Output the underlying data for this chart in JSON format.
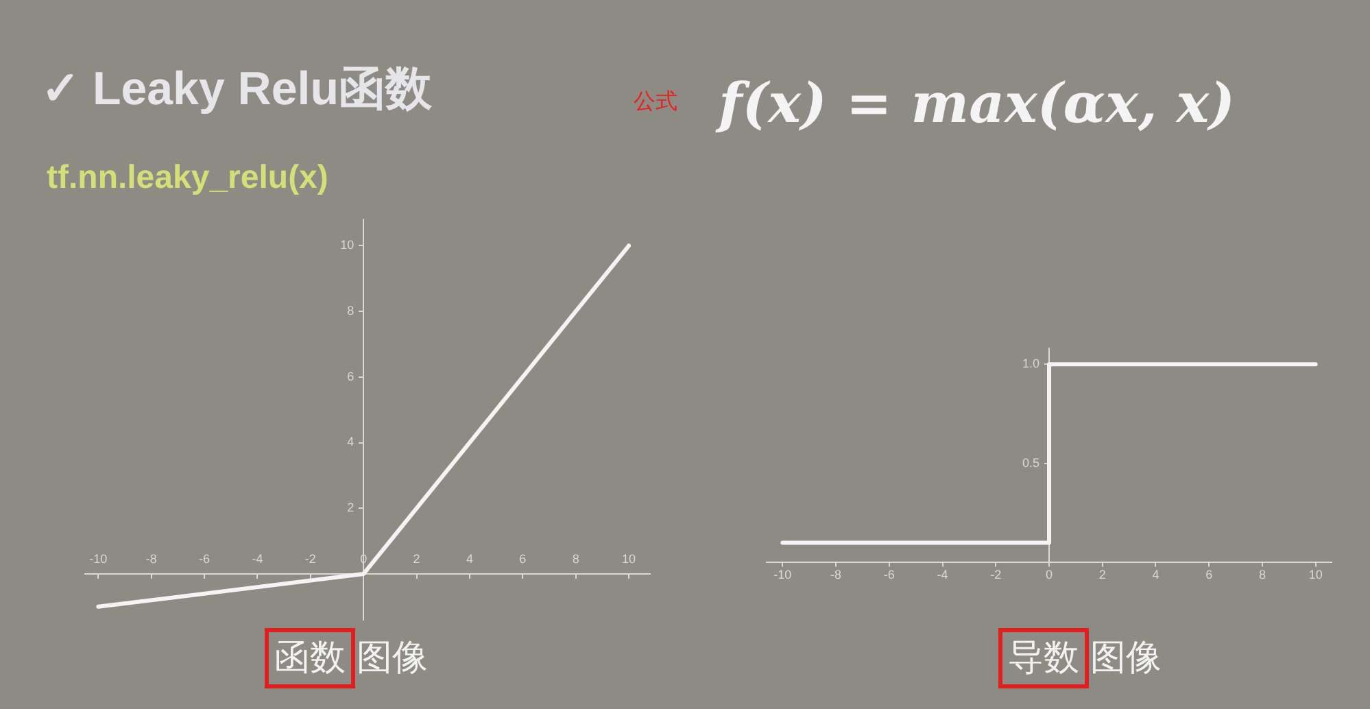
{
  "chart_data": [
    {
      "type": "line",
      "title": "✓ Leaky Relu函数",
      "subtitle": "tf.nn.leaky_relu(x)",
      "xlabel": "函数图像",
      "annotations": [
        "公式",
        "f(x) = max(αx, x)"
      ],
      "x": [
        -10,
        0,
        10
      ],
      "series": [
        {
          "color": "#f4f4f4",
          "values": [
            -1,
            0,
            10
          ]
        }
      ],
      "xlim": [
        -10.5,
        10.8
      ],
      "ylim": [
        -1.4,
        10.8
      ],
      "xticks": [
        -10,
        -8,
        -6,
        -4,
        -2,
        0,
        2,
        4,
        6,
        8,
        10
      ],
      "yticks": [
        2,
        4,
        6,
        8,
        10
      ],
      "marker": "none"
    },
    {
      "type": "step",
      "xlabel": "导数图像",
      "x": [
        -10,
        0,
        10
      ],
      "series": [
        {
          "color": "#f4f4f4",
          "values": [
            0.1,
            1,
            1
          ]
        }
      ],
      "xlim": [
        -10.6,
        10.6
      ],
      "ylim": [
        0,
        1.08
      ],
      "xticks": [
        -10,
        -8,
        -6,
        -4,
        -2,
        0,
        2,
        4,
        6,
        8,
        10
      ],
      "yticks": [
        0.5,
        {
          "value": 1,
          "label": "1.0"
        }
      ],
      "marker": "none"
    }
  ]
}
